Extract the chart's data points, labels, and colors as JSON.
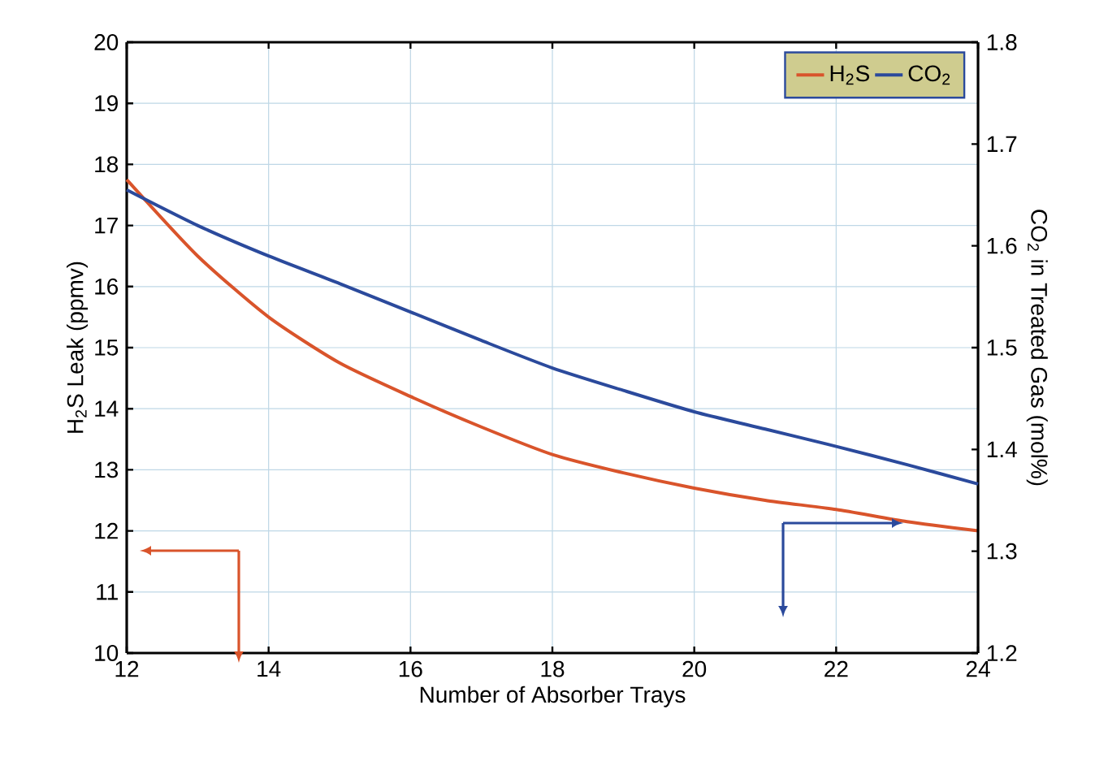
{
  "chart_data": {
    "type": "line",
    "xlabel": "Number of Absorber Trays",
    "ylabel": "H$_{2}$S Leak (ppmv)",
    "y2label": "CO$_{2}$ in Treated Gas (mol%)",
    "x": [
      12,
      13,
      14,
      15,
      16,
      17,
      18,
      19,
      20,
      21,
      22,
      23,
      24
    ],
    "series": [
      {
        "name": "H$_{2}$S",
        "color": "#d9542b",
        "values": [
          17.75,
          16.5,
          15.5,
          14.75,
          14.2,
          13.7,
          13.25,
          12.95,
          12.7,
          12.5,
          12.35,
          12.15,
          12.0
        ]
      },
      {
        "name": "CO$_{2}$",
        "color": "#2b4a9c",
        "axis": "y2",
        "values": [
          1.655,
          1.62,
          1.59,
          1.563,
          1.535,
          1.507,
          1.48,
          1.458,
          1.437,
          1.42,
          1.403,
          1.385,
          1.366
        ]
      }
    ],
    "xlim": [
      12,
      24
    ],
    "xticks": [
      12,
      14,
      16,
      18,
      20,
      22,
      24
    ],
    "ylim": [
      10,
      20
    ],
    "yticks": [
      10,
      11,
      12,
      13,
      14,
      15,
      16,
      17,
      18,
      19,
      20
    ],
    "y2lim": [
      1.2,
      1.8
    ],
    "y2ticks": [
      1.2,
      1.3,
      1.4,
      1.5,
      1.6,
      1.7,
      1.8
    ],
    "grid": true,
    "legend": "top right",
    "line_style": "solid",
    "marker": "none"
  }
}
